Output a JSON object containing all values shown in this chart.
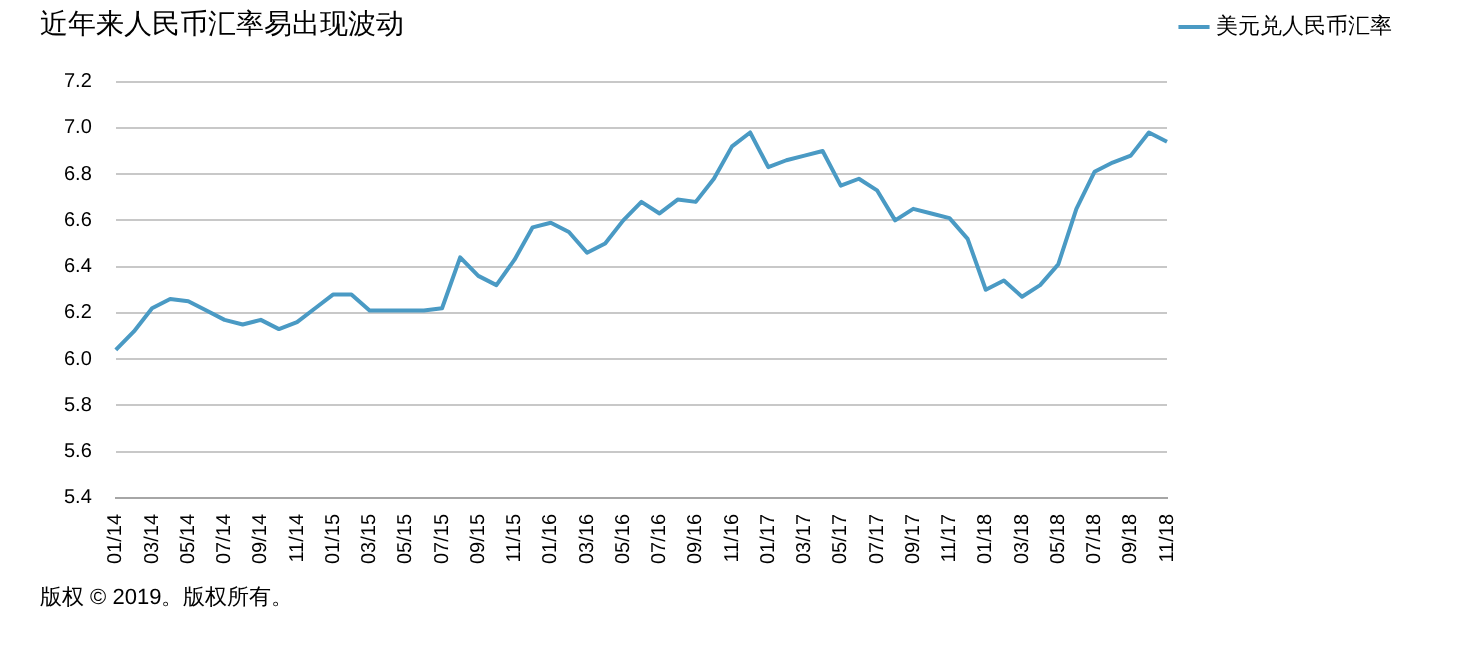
{
  "chart_data": {
    "type": "line",
    "title": "近年来人民币汇率易出现波动",
    "categories": [
      "01/14",
      null,
      "03/14",
      null,
      "05/14",
      null,
      "07/14",
      null,
      "09/14",
      null,
      "11/14",
      null,
      "01/15",
      null,
      "03/15",
      null,
      "05/15",
      null,
      "07/15",
      null,
      "09/15",
      null,
      "11/15",
      null,
      "01/16",
      null,
      "03/16",
      null,
      "05/16",
      null,
      "07/16",
      null,
      "09/16",
      null,
      "11/16",
      null,
      "01/17",
      null,
      "03/17",
      null,
      "05/17",
      null,
      "07/17",
      null,
      "09/17",
      null,
      "11/17",
      null,
      "01/18",
      null,
      "03/18",
      null,
      "05/18",
      null,
      "07/18",
      null,
      "09/18",
      null,
      "11/18"
    ],
    "series": [
      {
        "name": "美元兑人民币汇率",
        "color": "#4a9ac4",
        "values": [
          6.04,
          6.12,
          6.22,
          6.26,
          6.25,
          6.21,
          6.17,
          6.15,
          6.17,
          6.13,
          6.16,
          6.22,
          6.28,
          6.28,
          6.21,
          6.21,
          6.21,
          6.21,
          6.22,
          6.44,
          6.36,
          6.32,
          6.43,
          6.57,
          6.59,
          6.55,
          6.46,
          6.5,
          6.6,
          6.68,
          6.63,
          6.69,
          6.68,
          6.78,
          6.92,
          6.98,
          6.83,
          6.86,
          6.88,
          6.9,
          6.75,
          6.78,
          6.73,
          6.6,
          6.65,
          6.63,
          6.61,
          6.52,
          6.3,
          6.34,
          6.27,
          6.32,
          6.41,
          6.65,
          6.81,
          6.85,
          6.88,
          6.98,
          6.94
        ]
      }
    ],
    "ylim": [
      5.4,
      7.2
    ],
    "yticks": [
      5.4,
      5.6,
      5.8,
      {
        "value": 6,
        "label": "6.0"
      },
      6.2,
      6.4,
      6.6,
      6.8,
      {
        "value": 7,
        "label": "7.0"
      },
      7.2
    ],
    "grid": "y",
    "legend": "top right",
    "marker": "none",
    "line_style": "solid",
    "annotations": [
      "版权 © 2019。版权所有。"
    ]
  }
}
